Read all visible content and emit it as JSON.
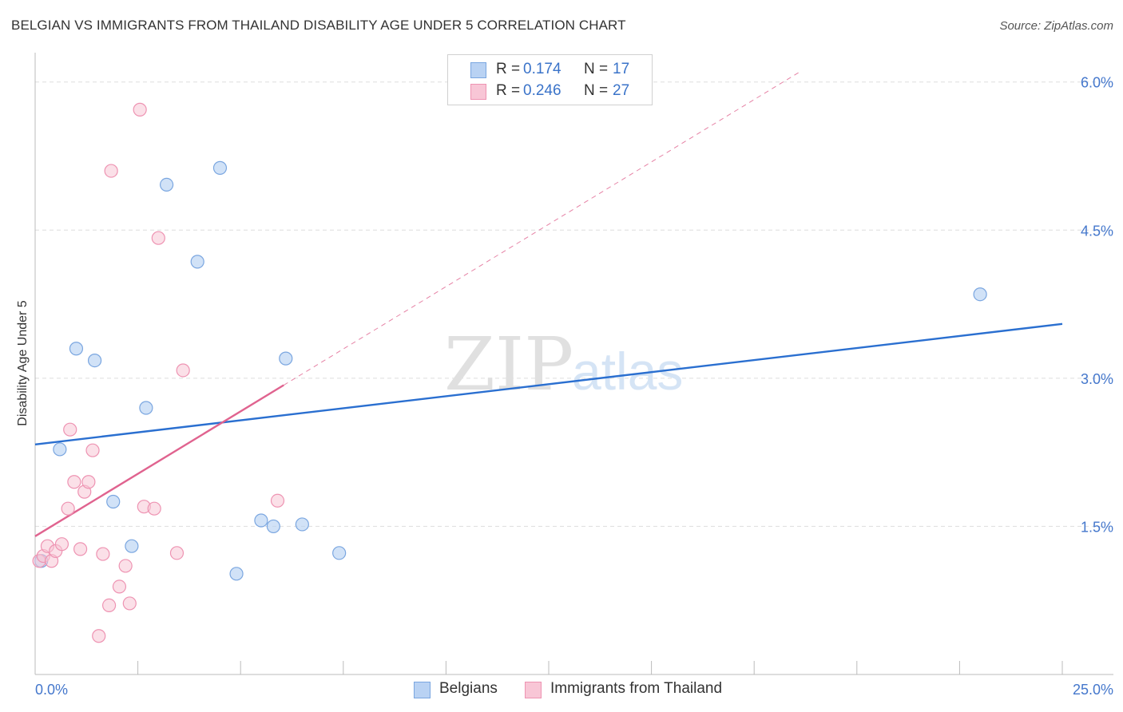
{
  "title": "BELGIAN VS IMMIGRANTS FROM THAILAND DISABILITY AGE UNDER 5 CORRELATION CHART",
  "source": "Source: ZipAtlas.com",
  "watermark": {
    "zip": "ZIP",
    "atlas": "atlas"
  },
  "colors": {
    "blue_fill": "#b9d2f3",
    "blue_stroke": "#7aa6e0",
    "blue_line": "#2a6fd0",
    "pink_fill": "#f8c6d6",
    "pink_stroke": "#ee93b2",
    "pink_line": "#e0638f",
    "tick_text": "#4477cc"
  },
  "legend": {
    "rows": [
      {
        "r_label": "R =",
        "r_value": "0.174",
        "n_label": "N =",
        "n_value": "17"
      },
      {
        "r_label": "R =",
        "r_value": "0.246",
        "n_label": "N =",
        "n_value": "27"
      }
    ]
  },
  "chart_data": {
    "type": "scatter",
    "title": "BELGIAN VS IMMIGRANTS FROM THAILAND DISABILITY AGE UNDER 5 CORRELATION CHART",
    "xlabel": "",
    "ylabel": "Disability Age Under 5",
    "xlim": [
      0,
      25
    ],
    "ylim": [
      0,
      6.2
    ],
    "x_tick_labels": [
      "0.0%",
      "25.0%"
    ],
    "y_ticks": [
      1.5,
      3.0,
      4.5,
      6.0
    ],
    "y_tick_labels": [
      "1.5%",
      "3.0%",
      "4.5%",
      "6.0%"
    ],
    "grid": true,
    "series": [
      {
        "name": "Belgians",
        "color": "#7aa6e0",
        "points": [
          {
            "x": 0.15,
            "y": 1.15
          },
          {
            "x": 0.6,
            "y": 2.28
          },
          {
            "x": 1.0,
            "y": 3.3
          },
          {
            "x": 1.45,
            "y": 3.18
          },
          {
            "x": 1.9,
            "y": 1.75
          },
          {
            "x": 2.35,
            "y": 1.3
          },
          {
            "x": 2.7,
            "y": 2.7
          },
          {
            "x": 3.2,
            "y": 4.96
          },
          {
            "x": 3.95,
            "y": 4.18
          },
          {
            "x": 4.5,
            "y": 5.13
          },
          {
            "x": 4.9,
            "y": 1.02
          },
          {
            "x": 5.5,
            "y": 1.56
          },
          {
            "x": 5.8,
            "y": 1.5
          },
          {
            "x": 6.1,
            "y": 3.2
          },
          {
            "x": 6.5,
            "y": 1.52
          },
          {
            "x": 7.4,
            "y": 1.23
          },
          {
            "x": 23.0,
            "y": 3.85
          }
        ]
      },
      {
        "name": "Immigrants from Thailand",
        "color": "#ee93b2",
        "points": [
          {
            "x": 0.1,
            "y": 1.15
          },
          {
            "x": 0.2,
            "y": 1.2
          },
          {
            "x": 0.3,
            "y": 1.3
          },
          {
            "x": 0.4,
            "y": 1.15
          },
          {
            "x": 0.5,
            "y": 1.25
          },
          {
            "x": 0.65,
            "y": 1.32
          },
          {
            "x": 0.8,
            "y": 1.68
          },
          {
            "x": 0.85,
            "y": 2.48
          },
          {
            "x": 0.95,
            "y": 1.95
          },
          {
            "x": 1.1,
            "y": 1.27
          },
          {
            "x": 1.2,
            "y": 1.85
          },
          {
            "x": 1.3,
            "y": 1.95
          },
          {
            "x": 1.4,
            "y": 2.27
          },
          {
            "x": 1.55,
            "y": 0.39
          },
          {
            "x": 1.65,
            "y": 1.22
          },
          {
            "x": 1.8,
            "y": 0.7
          },
          {
            "x": 1.85,
            "y": 5.1
          },
          {
            "x": 2.05,
            "y": 0.89
          },
          {
            "x": 2.2,
            "y": 1.1
          },
          {
            "x": 2.3,
            "y": 0.72
          },
          {
            "x": 2.55,
            "y": 5.72
          },
          {
            "x": 2.65,
            "y": 1.7
          },
          {
            "x": 2.9,
            "y": 1.68
          },
          {
            "x": 3.0,
            "y": 4.42
          },
          {
            "x": 3.45,
            "y": 1.23
          },
          {
            "x": 3.6,
            "y": 3.08
          },
          {
            "x": 5.9,
            "y": 1.76
          }
        ]
      }
    ],
    "trend_lines": [
      {
        "series": "Belgians",
        "x0": 0,
        "y0": 2.33,
        "x1": 25,
        "y1": 3.55,
        "style": "solid"
      },
      {
        "series": "Immigrants from Thailand",
        "x0": 0,
        "y0": 1.4,
        "x1": 6.05,
        "y1": 2.93,
        "style": "solid"
      },
      {
        "series": "Immigrants from Thailand",
        "x0": 6.05,
        "y0": 2.93,
        "x1": 18.6,
        "y1": 6.1,
        "style": "dashed"
      }
    ]
  }
}
